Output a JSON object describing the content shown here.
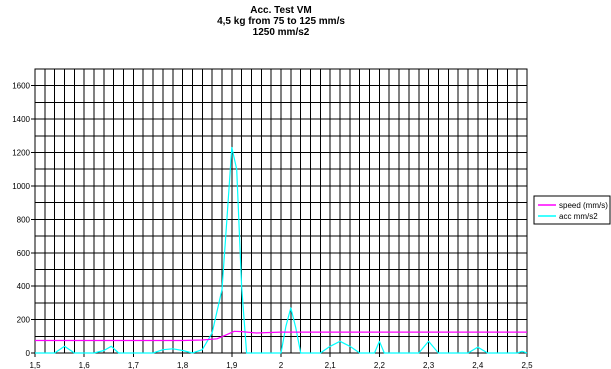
{
  "chart_data": {
    "type": "line",
    "title_lines": [
      "Acc. Test VM",
      "4,5 kg from 75 to 125 mm/s",
      "1250 mm/s2"
    ],
    "xlabel": "",
    "ylabel": "",
    "xlim": [
      1.5,
      2.5
    ],
    "ylim": [
      0,
      1700
    ],
    "x_ticks": [
      1.5,
      1.6,
      1.7,
      1.8,
      1.9,
      2.0,
      2.1,
      2.2,
      2.3,
      2.4,
      2.5
    ],
    "x_tick_labels": [
      "1,5",
      "1,6",
      "1,7",
      "1,8",
      "1,9",
      "2",
      "2,1",
      "2,2",
      "2,3",
      "2,4",
      "2,5"
    ],
    "y_ticks": [
      0,
      200,
      400,
      600,
      800,
      1000,
      1200,
      1400,
      1600
    ],
    "y_tick_labels": [
      "0",
      "200",
      "400",
      "600",
      "800",
      "1000",
      "1200",
      "1400",
      "1600"
    ],
    "x_minor_step": 0.02,
    "y_minor_step": 100,
    "grid": true,
    "legend_position": "right",
    "series": [
      {
        "name": "speed (mm/s)",
        "color": "#ff00ff",
        "x": [
          1.5,
          1.6,
          1.7,
          1.8,
          1.84,
          1.87,
          1.89,
          1.905,
          1.92,
          1.95,
          1.97,
          2.0,
          2.05,
          2.1,
          2.2,
          2.3,
          2.4,
          2.5
        ],
        "y": [
          75,
          75,
          75,
          75,
          78,
          85,
          110,
          130,
          128,
          120,
          122,
          125,
          125,
          125,
          125,
          125,
          125,
          125
        ]
      },
      {
        "name": "acc mm/s2",
        "color": "#00ffff",
        "x": [
          1.5,
          1.54,
          1.56,
          1.58,
          1.62,
          1.64,
          1.655,
          1.67,
          1.74,
          1.76,
          1.78,
          1.8,
          1.82,
          1.84,
          1.86,
          1.88,
          1.89,
          1.9,
          1.91,
          1.92,
          1.93,
          1.935,
          2.0,
          2.01,
          2.02,
          2.03,
          2.04,
          2.08,
          2.1,
          2.12,
          2.14,
          2.16,
          2.19,
          2.2,
          2.21,
          2.28,
          2.3,
          2.32,
          2.38,
          2.4,
          2.42,
          2.48,
          2.49,
          2.5
        ],
        "y": [
          0,
          0,
          40,
          0,
          0,
          15,
          40,
          0,
          0,
          20,
          25,
          15,
          0,
          20,
          120,
          380,
          800,
          1230,
          1100,
          400,
          0,
          0,
          0,
          160,
          270,
          150,
          0,
          0,
          40,
          70,
          40,
          0,
          0,
          70,
          0,
          0,
          70,
          0,
          0,
          35,
          0,
          0,
          10,
          0
        ]
      }
    ]
  }
}
